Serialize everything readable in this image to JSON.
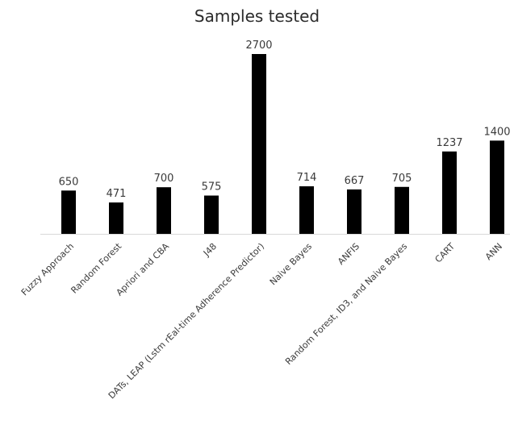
{
  "chart_data": {
    "type": "bar",
    "title": "Samples tested",
    "xlabel": "",
    "ylabel": "",
    "categories": [
      "Fuzzy Approach",
      "Random Forest",
      "Apriori and CBA",
      "J48",
      "DATs, LEAP (Lstm rEal-time Adherence Predictor)",
      "Naive Bayes",
      "ANFIS",
      "Random Forest, ID3, and Naive Bayes",
      "CART",
      "ANN"
    ],
    "values": [
      650,
      471,
      700,
      575,
      2700,
      714,
      667,
      705,
      1237,
      1400
    ],
    "value_labels": [
      "650",
      "471",
      "700",
      "575",
      "2700",
      "714",
      "667",
      "705",
      "1237",
      "1400"
    ],
    "ylim": [
      0,
      2700
    ],
    "grid": false,
    "legend": "none",
    "data_labels": true,
    "bar_color": "#000000",
    "axis_color": "#d9d9d9",
    "text_color": "#3a3a3a"
  }
}
